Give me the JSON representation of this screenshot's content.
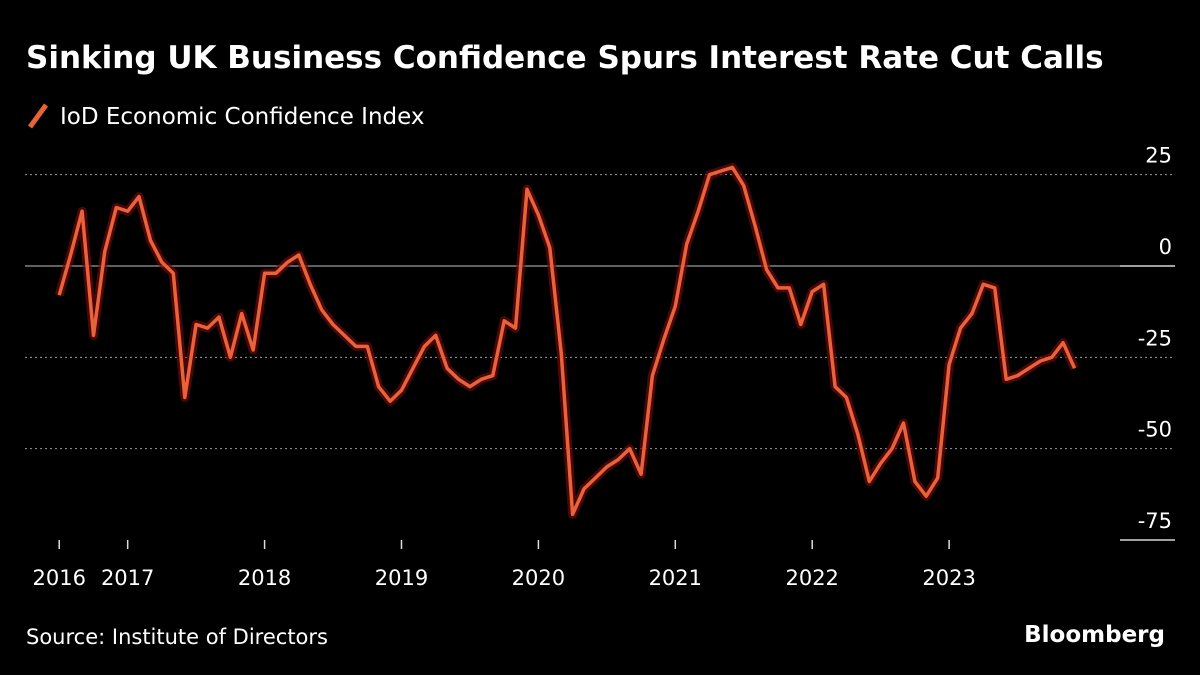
{
  "chart_data": {
    "type": "line",
    "title": "Sinking UK Business Confidence Spurs Interest Rate Cut Calls",
    "source": "Source: Institute of Directors",
    "brand": "Bloomberg",
    "x": [
      2016.5,
      2016.583,
      2016.667,
      2016.75,
      2016.833,
      2016.917,
      2017,
      2017.083,
      2017.167,
      2017.25,
      2017.333,
      2017.417,
      2017.5,
      2017.583,
      2017.667,
      2017.75,
      2017.833,
      2017.917,
      2018,
      2018.083,
      2018.167,
      2018.25,
      2018.333,
      2018.417,
      2018.5,
      2018.583,
      2018.667,
      2018.75,
      2018.833,
      2018.917,
      2019,
      2019.083,
      2019.167,
      2019.25,
      2019.333,
      2019.417,
      2019.5,
      2019.583,
      2019.667,
      2019.75,
      2019.833,
      2019.917,
      2020,
      2020.083,
      2020.167,
      2020.25,
      2020.333,
      2020.417,
      2020.5,
      2020.583,
      2020.667,
      2020.75,
      2020.833,
      2020.917,
      2021,
      2021.083,
      2021.167,
      2021.25,
      2021.333,
      2021.417,
      2021.5,
      2021.583,
      2021.667,
      2021.75,
      2021.833,
      2021.917,
      2022,
      2022.083,
      2022.167,
      2022.25,
      2022.333,
      2022.417,
      2022.5,
      2022.583,
      2022.667,
      2022.75,
      2022.833,
      2022.917,
      2023,
      2023.083,
      2023.167,
      2023.25,
      2023.333,
      2023.417,
      2023.5,
      2023.583,
      2023.667,
      2023.75,
      2023.833,
      2023.917
    ],
    "series": [
      {
        "name": "IoD Economic Confidence Index",
        "color": "#e8623a",
        "values": [
          -8,
          3,
          15,
          -19,
          4,
          16,
          15,
          19,
          7,
          1,
          -2,
          -36,
          -16,
          -17,
          -14,
          -25,
          -13,
          -23,
          -2,
          -2,
          1,
          3,
          -5,
          -12,
          -16,
          -19,
          -22,
          -22,
          -33,
          -37,
          -34,
          -28,
          -22,
          -19,
          -28,
          -31,
          -33,
          -31,
          -30,
          -15,
          -17,
          21,
          14,
          5,
          -24,
          -68,
          -61,
          -58,
          -55,
          -53,
          -50,
          -57,
          -30,
          -20,
          -11,
          6,
          15,
          25,
          26,
          27,
          22,
          11,
          -1,
          -6,
          -6,
          -16,
          -7,
          -5,
          -33,
          -36,
          -46,
          -59,
          -54,
          -50,
          -43,
          -59,
          -63,
          -58,
          -27,
          -17,
          -13,
          -5,
          -6,
          -31,
          -30,
          -28,
          -26,
          -25,
          -21,
          -28
        ]
      }
    ],
    "xlim": [
      2016.25,
      2024.65
    ],
    "xticks": [
      {
        "value": 2016.5,
        "label": "2016"
      },
      2017,
      2018,
      2019,
      2020,
      2021,
      2022,
      2023
    ],
    "ylim": [
      -75,
      30
    ],
    "yticks": [
      25,
      0,
      -25,
      -50,
      -75
    ],
    "grid": true
  }
}
